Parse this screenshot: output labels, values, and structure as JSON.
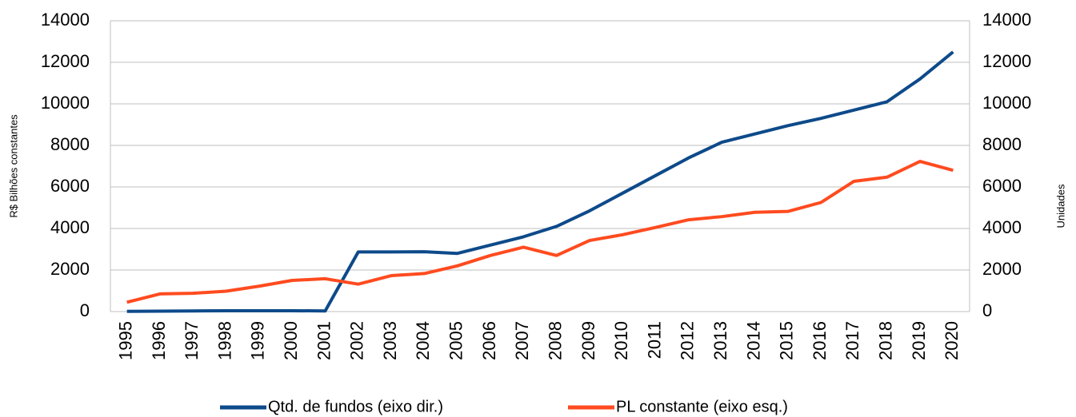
{
  "chart_data": {
    "type": "line",
    "ylabel": "R$ Bilhões constantes",
    "y2label": "Unidades",
    "categories": [
      "1995",
      "1996",
      "1997",
      "1998",
      "1999",
      "2000",
      "2001",
      "2002",
      "2003",
      "2004",
      "2005",
      "2006",
      "2007",
      "2008",
      "2009",
      "2010",
      "2011",
      "2012",
      "2013",
      "2014",
      "2015",
      "2016",
      "2017",
      "2018",
      "2019",
      "2020"
    ],
    "series": [
      {
        "name": "Qtd. de fundos (eixo dir.)",
        "color": "#0d4a8a",
        "axis": "y2",
        "values": [
          10,
          20,
          30,
          40,
          40,
          40,
          30,
          2870,
          2870,
          2880,
          2800,
          3200,
          3600,
          4100,
          4850,
          5700,
          6550,
          7400,
          8150,
          8550,
          8950,
          9300,
          9700,
          10100,
          11200,
          12500
        ]
      },
      {
        "name": "PL constante (eixo esq.)",
        "color": "#ff4b1f",
        "values": [
          450,
          850,
          880,
          980,
          1220,
          1500,
          1580,
          1320,
          1730,
          1830,
          2200,
          2700,
          3100,
          2700,
          3420,
          3700,
          4050,
          4420,
          4570,
          4780,
          4820,
          5250,
          6270,
          6470,
          7230,
          6800
        ]
      }
    ],
    "ylim": [
      0,
      14000
    ],
    "yticks": [
      0,
      2000,
      4000,
      6000,
      8000,
      10000,
      12000,
      14000
    ],
    "y2lim": [
      0,
      14000
    ],
    "y2ticks": [
      0,
      2000,
      4000,
      6000,
      8000,
      10000,
      12000,
      14000
    ],
    "grid": true,
    "legend": "bottom"
  }
}
